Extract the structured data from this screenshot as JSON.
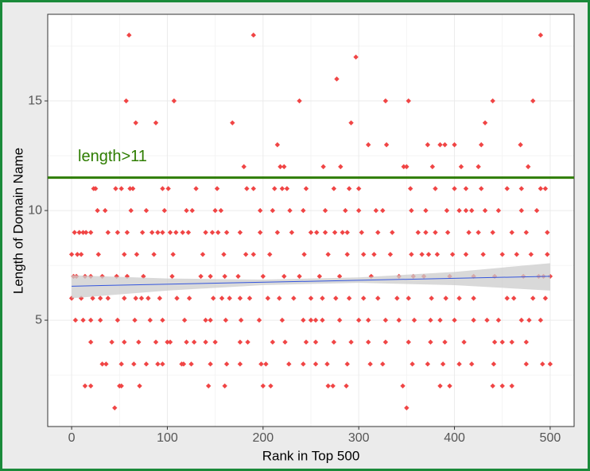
{
  "chart_data": {
    "type": "scatter",
    "x_label": "Rank in Top 500",
    "y_label": "Length of Domain Name",
    "xlim": [
      -25,
      525
    ],
    "ylim": [
      0.15,
      18.95
    ],
    "xticks": [
      0,
      100,
      200,
      300,
      400,
      500
    ],
    "yticks": [
      5,
      10,
      15
    ],
    "x_minor_grid": [
      50,
      150,
      250,
      350,
      450
    ],
    "y_minor_grid": [
      2.5,
      7.5,
      12.5,
      17.5
    ],
    "grid": true,
    "series": [
      {
        "color": "#f04545",
        "x": [
          60,
          190,
          490,
          297,
          277,
          57,
          107,
          238,
          328,
          352,
          440,
          482,
          67,
          88,
          168,
          292,
          432,
          215,
          310,
          329,
          372,
          385,
          390,
          400,
          428,
          469,
          180,
          218,
          222,
          263,
          281,
          347,
          350,
          377,
          407,
          425,
          477,
          23,
          25,
          46,
          52,
          61,
          64,
          95,
          101,
          130,
          152,
          183,
          190,
          212,
          220,
          225,
          245,
          274,
          290,
          300,
          354,
          380,
          400,
          412,
          428,
          455,
          470,
          490,
          495,
          27,
          35,
          62,
          78,
          97,
          120,
          126,
          150,
          156,
          197,
          210,
          228,
          242,
          265,
          286,
          300,
          318,
          325,
          355,
          370,
          392,
          405,
          412,
          418,
          432,
          446,
          470,
          486,
          3,
          8,
          12,
          15,
          20,
          38,
          48,
          58,
          74,
          84,
          90,
          95,
          103,
          109,
          116,
          122,
          140,
          147,
          153,
          162,
          176,
          197,
          215,
          230,
          250,
          256,
          265,
          275,
          283,
          288,
          303,
          320,
          335,
          362,
          370,
          380,
          393,
          415,
          425,
          440,
          460,
          475,
          497,
          0,
          6,
          10,
          28,
          55,
          68,
          86,
          106,
          137,
          159,
          182,
          190,
          207,
          243,
          268,
          288,
          305,
          316,
          333,
          355,
          366,
          373,
          382,
          398,
          412,
          430,
          450,
          465,
          480,
          497,
          2,
          5,
          14,
          20,
          32,
          47,
          58,
          75,
          105,
          135,
          145,
          160,
          174,
          200,
          222,
          238,
          259,
          280,
          313,
          342,
          357,
          368,
          395,
          420,
          442,
          472,
          488,
          493,
          500,
          0,
          10,
          22,
          30,
          38,
          55,
          67,
          73,
          80,
          92,
          110,
          123,
          148,
          157,
          165,
          176,
          186,
          205,
          217,
          232,
          250,
          262,
          276,
          290,
          305,
          320,
          340,
          352,
          376,
          391,
          405,
          420,
          455,
          462,
          482,
          495,
          4,
          12,
          20,
          30,
          48,
          66,
          82,
          95,
          118,
          140,
          145,
          161,
          177,
          196,
          220,
          242,
          250,
          255,
          262,
          280,
          300,
          310,
          328,
          342,
          358,
          375,
          385,
          400,
          420,
          434,
          446,
          470,
          478,
          490,
          20,
          42,
          55,
          70,
          88,
          100,
          103,
          120,
          128,
          140,
          150,
          176,
          184,
          210,
          223,
          245,
          255,
          274,
          292,
          310,
          328,
          352,
          375,
          390,
          410,
          442,
          450,
          460,
          475,
          32,
          36,
          52,
          65,
          78,
          90,
          95,
          115,
          117,
          125,
          145,
          162,
          176,
          198,
          203,
          227,
          242,
          255,
          267,
          288,
          312,
          325,
          356,
          372,
          388,
          405,
          418,
          441,
          475,
          492,
          500,
          14,
          20,
          50,
          52,
          71,
          143,
          160,
          200,
          208,
          268,
          273,
          287,
          346,
          385,
          395,
          440,
          450,
          460,
          45,
          350
        ],
        "values": [
          18,
          18,
          18,
          17,
          16,
          15,
          15,
          15,
          15,
          15,
          15,
          15,
          14,
          14,
          14,
          14,
          14,
          13,
          13,
          13,
          13,
          13,
          13,
          13,
          13,
          13,
          12,
          12,
          12,
          12,
          12,
          12,
          12,
          12,
          12,
          12,
          12,
          11,
          11,
          11,
          11,
          11,
          11,
          11,
          11,
          11,
          11,
          11,
          11,
          11,
          11,
          11,
          11,
          11,
          11,
          11,
          11,
          11,
          11,
          11,
          11,
          11,
          11,
          11,
          11,
          10,
          10,
          10,
          10,
          10,
          10,
          10,
          10,
          10,
          10,
          10,
          10,
          10,
          10,
          10,
          10,
          10,
          10,
          10,
          10,
          10,
          10,
          10,
          10,
          10,
          10,
          10,
          10,
          9,
          9,
          9,
          9,
          9,
          9,
          9,
          9,
          9,
          9,
          9,
          9,
          9,
          9,
          9,
          9,
          9,
          9,
          9,
          9,
          9,
          9,
          9,
          9,
          9,
          9,
          9,
          9,
          9,
          9,
          9,
          9,
          9,
          9,
          9,
          9,
          9,
          9,
          9,
          9,
          9,
          9,
          9,
          8,
          8,
          8,
          8,
          8,
          8,
          8,
          8,
          8,
          8,
          8,
          8,
          8,
          8,
          8,
          8,
          8,
          8,
          8,
          8,
          8,
          8,
          8,
          8,
          8,
          8,
          8,
          8,
          8,
          8,
          7,
          7,
          7,
          7,
          7,
          7,
          7,
          7,
          7,
          7,
          7,
          7,
          7,
          7,
          7,
          7,
          7,
          7,
          7,
          7,
          7,
          7,
          7,
          7,
          7,
          7,
          7,
          7,
          7,
          6,
          6,
          6,
          6,
          6,
          6,
          6,
          6,
          6,
          6,
          6,
          6,
          6,
          6,
          6,
          6,
          6,
          6,
          6,
          6,
          6,
          6,
          6,
          6,
          6,
          6,
          6,
          6,
          6,
          6,
          6,
          6,
          6,
          6,
          6,
          6,
          5,
          5,
          5,
          5,
          5,
          5,
          5,
          5,
          5,
          5,
          5,
          5,
          5,
          5,
          5,
          5,
          5,
          5,
          5,
          5,
          5,
          5,
          5,
          5,
          5,
          5,
          5,
          5,
          5,
          5,
          5,
          5,
          5,
          5,
          4,
          4,
          4,
          4,
          4,
          4,
          4,
          4,
          4,
          4,
          4,
          4,
          4,
          4,
          4,
          4,
          4,
          4,
          4,
          4,
          4,
          4,
          4,
          4,
          4,
          4,
          4,
          4,
          4,
          3,
          3,
          3,
          3,
          3,
          3,
          3,
          3,
          3,
          3,
          3,
          3,
          3,
          3,
          3,
          3,
          3,
          3,
          3,
          3,
          3,
          3,
          3,
          3,
          3,
          3,
          3,
          3,
          3,
          3,
          3,
          2,
          2,
          2,
          2,
          2,
          2,
          2,
          2,
          2,
          2,
          2,
          2,
          2,
          2,
          2,
          2,
          2,
          2,
          1,
          1
        ]
      }
    ],
    "band": {
      "color": "#cccccc",
      "x": [
        0,
        100,
        200,
        300,
        400,
        500
      ],
      "lower": [
        6.0,
        6.35,
        6.6,
        6.7,
        6.6,
        6.35
      ],
      "upper": [
        7.05,
        6.9,
        6.85,
        6.95,
        7.2,
        7.6
      ]
    },
    "fit": {
      "color": "#3355dd",
      "x": [
        0,
        500
      ],
      "y": [
        6.55,
        7.0
      ]
    },
    "hline": {
      "y": 11.5,
      "label": "length>11",
      "color": "#2e7d00"
    }
  }
}
